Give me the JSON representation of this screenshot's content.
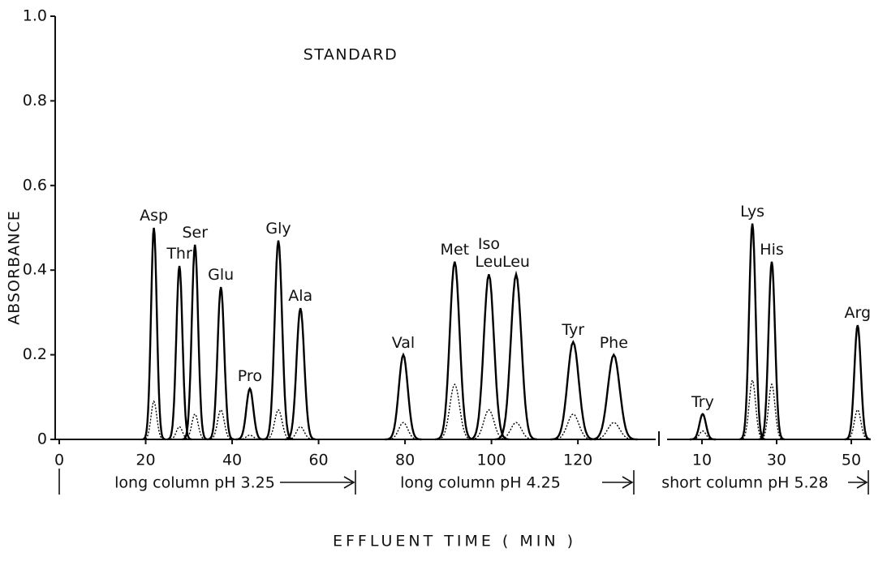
{
  "chart_data": {
    "type": "chromatogram",
    "title": "STANDARD",
    "y_label": "ABSORBANCE",
    "x_label": "EFFLUENT TIME ( MIN )",
    "ylim": [
      0,
      1
    ],
    "yticks": [
      0,
      0.2,
      0.4,
      0.6,
      0.8,
      {
        "value": 1,
        "label": "1.0"
      }
    ],
    "color": "#000000",
    "annotations": [
      "long column pH 3.25",
      "long column pH 4.25",
      "short column pH 5.28"
    ],
    "panels": [
      {
        "xlim": [
          0,
          138
        ],
        "xticks": [
          0,
          20,
          40,
          60,
          80,
          100,
          120
        ],
        "categories": [
          "Asp",
          "Thr",
          "Ser",
          "Glu",
          "Pro",
          "Gly",
          "Ala",
          "Val",
          "Met",
          "Iso Leu",
          "Leu",
          "Tyr",
          "Phe"
        ],
        "x": [
          21.9,
          27.8,
          31.4,
          37.4,
          44.1,
          50.7,
          55.8,
          79.6,
          91.5,
          99.4,
          105.7,
          118.9,
          128.3
        ],
        "series": [
          {
            "style": "solid",
            "values": [
              0.5,
              0.41,
              0.46,
              0.36,
              0.12,
              0.47,
              0.31,
              0.2,
              0.42,
              0.39,
              0.39,
              0.23,
              0.2
            ]
          },
          {
            "style": "dotted",
            "values": [
              0.09,
              0.03,
              0.06,
              0.07,
              0.01,
              0.07,
              0.03,
              0.04,
              0.13,
              0.07,
              0.04,
              0.06,
              0.04
            ]
          }
        ]
      },
      {
        "xlim": [
          0,
          55
        ],
        "xticks": [
          10,
          30,
          50
        ],
        "categories": [
          "Try",
          "Lys",
          "His",
          "Arg"
        ],
        "x": [
          10.2,
          23.5,
          28.7,
          51.7
        ],
        "series": [
          {
            "style": "solid",
            "values": [
              0.06,
              0.51,
              0.42,
              0.27
            ]
          },
          {
            "style": "dotted",
            "values": [
              0.02,
              0.14,
              0.13,
              0.07
            ]
          }
        ]
      }
    ]
  }
}
